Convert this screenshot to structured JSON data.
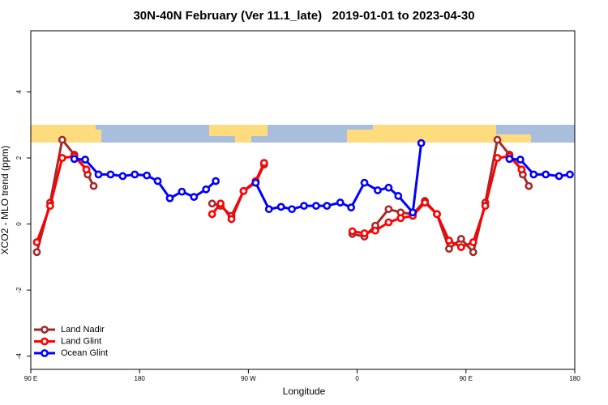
{
  "chart_data": {
    "type": "line",
    "title": "30N-40N February (Ver 11.1_late)   2019-01-01 to 2023-04-30",
    "x_label": "Longitude",
    "y_label": "XCO2 - MLO trend (ppm)",
    "xlim": [
      90,
      540
    ],
    "ylim": [
      -4.4,
      5.85
    ],
    "xticks": [
      {
        "value": 90,
        "label": "90 E"
      },
      180,
      {
        "value": 270,
        "label": "90 W"
      },
      {
        "value": 360,
        "label": "0"
      },
      {
        "value": 450,
        "label": "90 E"
      },
      180
    ],
    "yticks": [
      -4,
      -2,
      0,
      2,
      4
    ],
    "legend": "bottom-left",
    "series": [
      {
        "name": "Land Nadir",
        "color": "#a52a2a",
        "x": [
          95,
          106,
          116,
          126,
          136,
          137,
          142,
          null,
          240,
          247,
          256,
          266,
          276,
          283,
          null,
          356,
          366,
          375,
          386,
          396,
          406,
          416,
          426,
          436,
          446,
          456,
          466,
          476,
          486,
          496,
          497,
          502
        ],
        "values": [
          -0.85,
          0.65,
          2.55,
          2.1,
          1.65,
          1.5,
          1.15,
          null,
          0.62,
          0.55,
          0.25,
          1.0,
          1.25,
          1.8,
          null,
          -0.3,
          -0.38,
          -0.05,
          0.45,
          0.35,
          0.3,
          0.7,
          0.3,
          -0.75,
          -0.45,
          -0.85,
          0.65,
          2.55,
          2.1,
          1.65,
          1.5,
          1.15
        ]
      },
      {
        "name": "Land Glint",
        "color": "#ff0000",
        "x": [
          95,
          106,
          116,
          126,
          136,
          null,
          240,
          247,
          256,
          266,
          276,
          283,
          null,
          356,
          366,
          375,
          386,
          396,
          406,
          416,
          426,
          436,
          446,
          456,
          466,
          476,
          486,
          496
        ],
        "values": [
          -0.55,
          0.55,
          2.0,
          2.05,
          1.65,
          null,
          0.3,
          0.62,
          0.15,
          1.0,
          1.3,
          1.85,
          null,
          -0.22,
          -0.28,
          -0.2,
          0.05,
          0.18,
          0.25,
          0.65,
          0.3,
          -0.5,
          -0.7,
          -0.55,
          0.55,
          2.0,
          2.05,
          1.65
        ]
      },
      {
        "name": "Ocean Glint",
        "color": "#0000ff",
        "x": [
          126,
          135,
          146,
          156,
          166,
          176,
          186,
          195,
          205,
          215,
          225,
          235,
          243,
          null,
          276,
          287,
          297,
          306,
          316,
          326,
          335,
          346,
          355,
          366,
          377,
          386,
          394,
          406,
          413,
          null,
          486,
          495,
          506,
          516,
          527,
          536
        ],
        "values": [
          1.97,
          1.95,
          1.5,
          1.5,
          1.45,
          1.5,
          1.47,
          1.3,
          0.78,
          0.98,
          0.82,
          1.05,
          1.3,
          null,
          1.25,
          0.45,
          0.52,
          0.45,
          0.55,
          0.55,
          0.55,
          0.65,
          0.5,
          1.25,
          1.02,
          1.1,
          0.85,
          0.35,
          2.45,
          null,
          1.97,
          1.95,
          1.5,
          1.5,
          1.45,
          1.5
        ]
      }
    ]
  }
}
